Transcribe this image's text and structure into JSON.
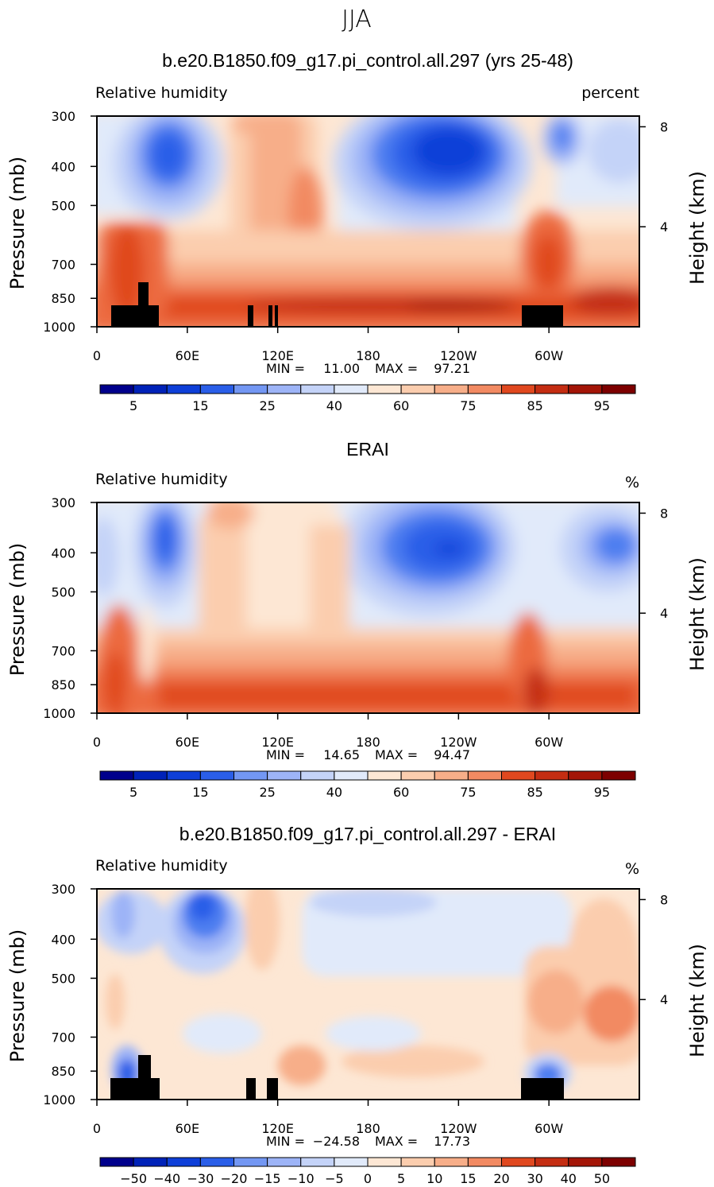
{
  "season": "JJA",
  "colors": {
    "rh": [
      "#00008c",
      "#0022b8",
      "#0e3fd8",
      "#2a5ee8",
      "#4d7ef0",
      "#7397f3",
      "#9db4f7",
      "#c4d3f8",
      "#e1eafa",
      "#fde7d4",
      "#fbcdae",
      "#f7ae89",
      "#f28a62",
      "#ec6b41",
      "#e0481f",
      "#c42d12",
      "#a31507",
      "#7d0000"
    ],
    "diff": [
      "#00008c",
      "#0022b8",
      "#0e3fd8",
      "#2a5ee8",
      "#4d7ef0",
      "#7397f3",
      "#9db4f7",
      "#c4d3f8",
      "#e1eafa",
      "#fde7d4",
      "#fbcdae",
      "#f7ae89",
      "#f28a62",
      "#ec6b41",
      "#e0481f",
      "#c42d12",
      "#a31507",
      "#7d0000"
    ],
    "land": "#000000"
  },
  "chart_data": [
    {
      "type": "heatmap",
      "title": "b.e20.B1850.f09_g17.pi_control.all.297 (yrs 25-48)",
      "left_label": "Relative humidity",
      "right_label": "percent",
      "ylabel": "Pressure (mb)",
      "ylabel2": "Height (km)",
      "xticks": [
        "0",
        "60E",
        "120E",
        "180",
        "120W",
        "60W"
      ],
      "yticks": [
        "300",
        "400",
        "500",
        "700",
        "850",
        "1000"
      ],
      "yticks2": [
        "8",
        "4"
      ],
      "stats": {
        "min_label": "MIN =",
        "min": "11.00",
        "max_label": "MAX =",
        "max": "97.21"
      },
      "colorbar_labels": [
        "5",
        "15",
        "25",
        "40",
        "60",
        "75",
        "85",
        "95"
      ],
      "has_land": true
    },
    {
      "type": "heatmap",
      "title": "ERAI",
      "left_label": "Relative humidity",
      "right_label": "%",
      "ylabel": "Pressure (mb)",
      "ylabel2": "Height (km)",
      "xticks": [
        "0",
        "60E",
        "120E",
        "180",
        "120W",
        "60W"
      ],
      "yticks": [
        "300",
        "400",
        "500",
        "700",
        "850",
        "1000"
      ],
      "yticks2": [
        "8",
        "4"
      ],
      "stats": {
        "min_label": "MIN =",
        "min": "14.65",
        "max_label": "MAX =",
        "max": "94.47"
      },
      "colorbar_labels": [
        "5",
        "15",
        "25",
        "40",
        "60",
        "75",
        "85",
        "95"
      ],
      "has_land": false
    },
    {
      "type": "heatmap",
      "title": "b.e20.B1850.f09_g17.pi_control.all.297 - ERAI",
      "left_label": "Relative humidity",
      "right_label": "%",
      "ylabel": "Pressure (mb)",
      "ylabel2": "Height (km)",
      "xticks": [
        "0",
        "60E",
        "120E",
        "180",
        "120W",
        "60W"
      ],
      "yticks": [
        "300",
        "400",
        "500",
        "700",
        "850",
        "1000"
      ],
      "yticks2": [
        "8",
        "4"
      ],
      "stats": {
        "min_label": "MIN =",
        "min": "−24.58",
        "max_label": "MAX =",
        "max": "17.73"
      },
      "colorbar_labels": [
        "−50",
        "−40",
        "−30",
        "−20",
        "−15",
        "−10",
        "−5",
        "0",
        "5",
        "10",
        "15",
        "20",
        "30",
        "40",
        "50"
      ],
      "has_land": true
    }
  ]
}
